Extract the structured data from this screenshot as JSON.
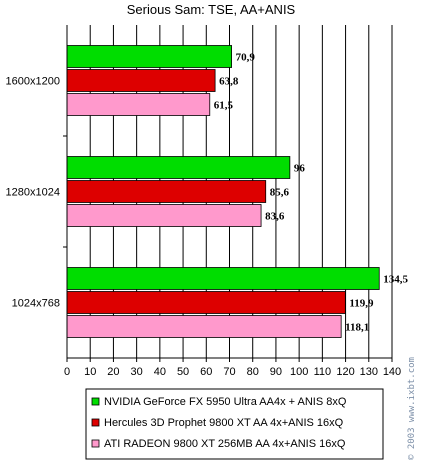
{
  "chart_data": {
    "type": "bar",
    "orientation": "horizontal",
    "title": "Serious Sam: TSE, AA+ANIS",
    "categories": [
      "1600x1200",
      "1280x1024",
      "1024x768"
    ],
    "series": [
      {
        "name": "NVIDIA GeForce FX 5950 Ultra AA4x + ANIS 8xQ",
        "color": "#00dd00",
        "values": [
          70.9,
          96,
          134.5
        ],
        "labels": [
          "70,9",
          "96",
          "134,5"
        ]
      },
      {
        "name": "Hercules 3D Prophet 9800 XT AA 4x+ANIS 16xQ",
        "color": "#dd0000",
        "values": [
          63.8,
          85.6,
          119.9
        ],
        "labels": [
          "63,8",
          "85,6",
          "119,9"
        ]
      },
      {
        "name": "ATI RADEON 9800 XT 256MB AA 4x+ANIS 16xQ",
        "color": "#ff99cc",
        "values": [
          61.5,
          83.6,
          118.1
        ],
        "labels": [
          "61,5",
          "83,6",
          "118,1"
        ]
      }
    ],
    "xlim": [
      0,
      140
    ],
    "xticks": [
      0,
      10,
      20,
      30,
      40,
      50,
      60,
      70,
      80,
      90,
      100,
      110,
      120,
      130,
      140
    ],
    "grid": true,
    "legend_position": "bottom"
  },
  "watermark": "© 2003 www.ixbt.com"
}
